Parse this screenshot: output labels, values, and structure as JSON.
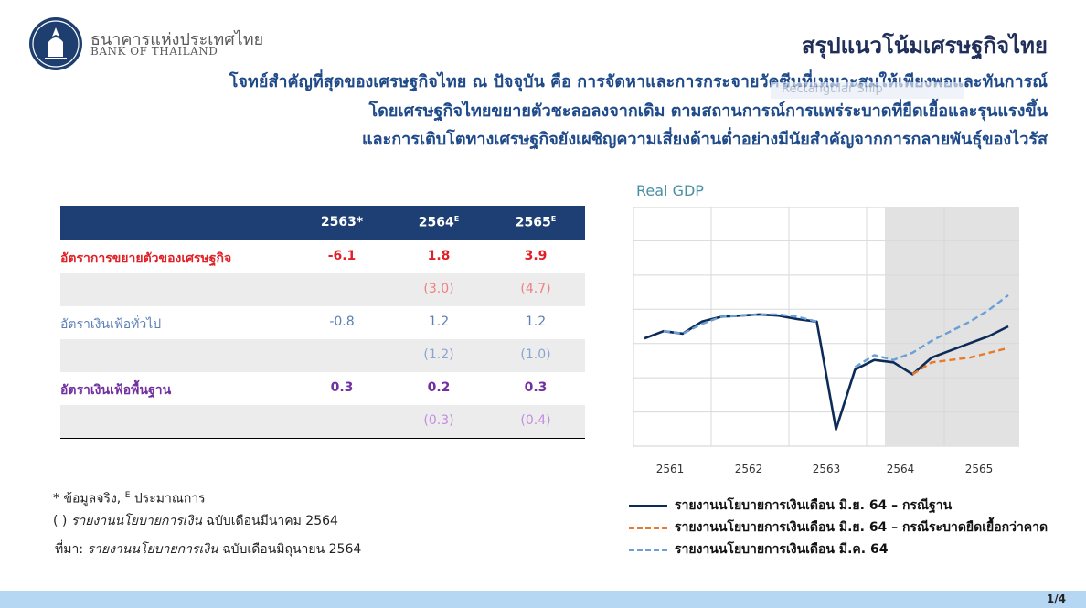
{
  "header": {
    "bank_name_th": "ธนาคารแห่งประเทศไทย",
    "bank_name_en": "BANK OF THAILAND",
    "title": "สรุปแนวโน้มเศรษฐกิจไทย",
    "subtitle_lines": [
      "โจทย์สำคัญที่สุดของเศรษฐกิจไทย ณ ปัจจุบัน คือ การจัดหาและการกระจายวัคซีนที่เหมาะสมให้เพียงพอและทันการณ์",
      "โดยเศรษฐกิจไทยขยายตัวชะลอลงจากเดิม ตามสถานการณ์การแพร่ระบาดที่ยืดเยื้อและรุนแรงขึ้น",
      "และการเติบโตทางเศรษฐกิจยังเผชิญความเสี่ยงด้านต่ำอย่างมีนัยสำคัญจากการกลายพันธุ์ของไวรัส"
    ],
    "overlay_label": "Rectangular Snip"
  },
  "table": {
    "columns": [
      "2563*",
      "2564",
      "2565"
    ],
    "superscripts": [
      "",
      "E",
      "E"
    ],
    "rows": [
      {
        "label": "อัตราการขยายตัวของเศรษฐกิจ",
        "values": [
          "-6.1",
          "1.8",
          "3.9"
        ],
        "prev": [
          "",
          "(3.0)",
          "(4.7)"
        ],
        "color": "#e01f26",
        "val_color": "#e01f26",
        "prev_color": "#f08080",
        "bold": true
      },
      {
        "label": "อัตราเงินเฟ้อทั่วไป",
        "values": [
          "-0.8",
          "1.2",
          "1.2"
        ],
        "prev": [
          "",
          "(1.2)",
          "(1.0)"
        ],
        "color": "#5b7fb5",
        "val_color": "#5b7fb5",
        "prev_color": "#8aa6d0",
        "bold": false
      },
      {
        "label": "อัตราเงินเฟ้อพื้นฐาน",
        "values": [
          "0.3",
          "0.2",
          "0.3"
        ],
        "prev": [
          "",
          "(0.3)",
          "(0.4)"
        ],
        "color": "#7030a0",
        "val_color": "#7030a0",
        "prev_color": "#c48de0",
        "bold": true
      }
    ]
  },
  "notes": {
    "line1": "* ข้อมูลจริง, ",
    "line1_sup": "E",
    "line1_tail": " ประมาณการ",
    "line2_prefix": "(  ) ",
    "line2_italic": "รายงานนโยบายการเงิน",
    "line2_tail": " ฉบับเดือนมีนาคม 2564",
    "source_prefix": "ที่มา: ",
    "source_italic": "รายงานนโยบายการเงิน",
    "source_tail": " ฉบับเดือนมิถุนายน 2564"
  },
  "chart_data": {
    "type": "line",
    "title": "Real GDP",
    "xlabel": "",
    "ylabel": "",
    "x_ticks": [
      "2561",
      "2562",
      "2563",
      "2564",
      "2565"
    ],
    "forecast_shaded_from": "2564",
    "grid": true,
    "series": [
      {
        "name": "รายงานนโยบายการเงินเดือน มิ.ย. 64 – กรณีฐาน",
        "color": "#0d2b57",
        "dash": false,
        "values": [
          0.55,
          0.52,
          0.53,
          0.48,
          0.46,
          0.455,
          0.45,
          0.455,
          0.47,
          0.48,
          0.93,
          0.68,
          0.64,
          0.65,
          0.7,
          0.63,
          0.6,
          0.57,
          0.54,
          0.5
        ]
      },
      {
        "name": "รายงานนโยบายการเงินเดือน มิ.ย. 64 – กรณีระบาดยืดเยื้อกว่าคาด",
        "color": "#e87a2a",
        "dash": true,
        "values": [
          null,
          null,
          null,
          null,
          null,
          null,
          null,
          null,
          null,
          null,
          null,
          null,
          null,
          null,
          0.7,
          0.65,
          0.64,
          0.63,
          0.61,
          0.59
        ]
      },
      {
        "name": "รายงานนโยบายการเงินเดือน มี.ค. 64",
        "color": "#6a9fd8",
        "dash": true,
        "values": [
          null,
          0.52,
          0.53,
          0.49,
          0.46,
          0.455,
          0.45,
          0.45,
          0.46,
          0.48,
          null,
          0.67,
          0.62,
          0.64,
          0.61,
          0.56,
          0.52,
          0.48,
          0.43,
          0.37
        ]
      }
    ]
  },
  "footer": {
    "page": "1/4"
  }
}
